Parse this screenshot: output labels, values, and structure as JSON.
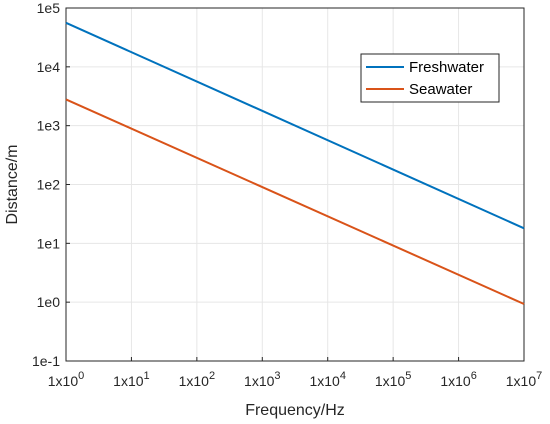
{
  "chart_data": {
    "type": "line",
    "title": "",
    "xlabel": "Frequency/Hz",
    "ylabel": "Distance/m",
    "x_scale": "log",
    "y_scale": "log",
    "xlim": [
      1,
      10000000
    ],
    "ylim": [
      0.1,
      100000
    ],
    "x_ticks": [
      {
        "value": 1,
        "base": "1x10",
        "exp": "0"
      },
      {
        "value": 10,
        "base": "1x10",
        "exp": "1"
      },
      {
        "value": 100,
        "base": "1x10",
        "exp": "2"
      },
      {
        "value": 1000,
        "base": "1x10",
        "exp": "3"
      },
      {
        "value": 10000,
        "base": "1x10",
        "exp": "4"
      },
      {
        "value": 100000,
        "base": "1x10",
        "exp": "5"
      },
      {
        "value": 1000000,
        "base": "1x10",
        "exp": "6"
      },
      {
        "value": 10000000,
        "base": "1x10",
        "exp": "7"
      }
    ],
    "y_ticks": [
      {
        "value": 100000,
        "label": "1e5"
      },
      {
        "value": 10000,
        "label": "1e4"
      },
      {
        "value": 1000,
        "label": "1e3"
      },
      {
        "value": 100,
        "label": "1e2"
      },
      {
        "value": 10,
        "label": "1e1"
      },
      {
        "value": 1,
        "label": "1e0"
      },
      {
        "value": 0.1,
        "label": "1e-1"
      }
    ],
    "grid": true,
    "legend_position": "top-right",
    "series": [
      {
        "name": "Freshwater",
        "color": "#0072BD",
        "points": [
          [
            1,
            56000
          ],
          [
            10000000,
            18
          ]
        ]
      },
      {
        "name": "Seawater",
        "color": "#D95319",
        "points": [
          [
            1,
            2800
          ],
          [
            10000000,
            0.93
          ]
        ]
      }
    ]
  }
}
